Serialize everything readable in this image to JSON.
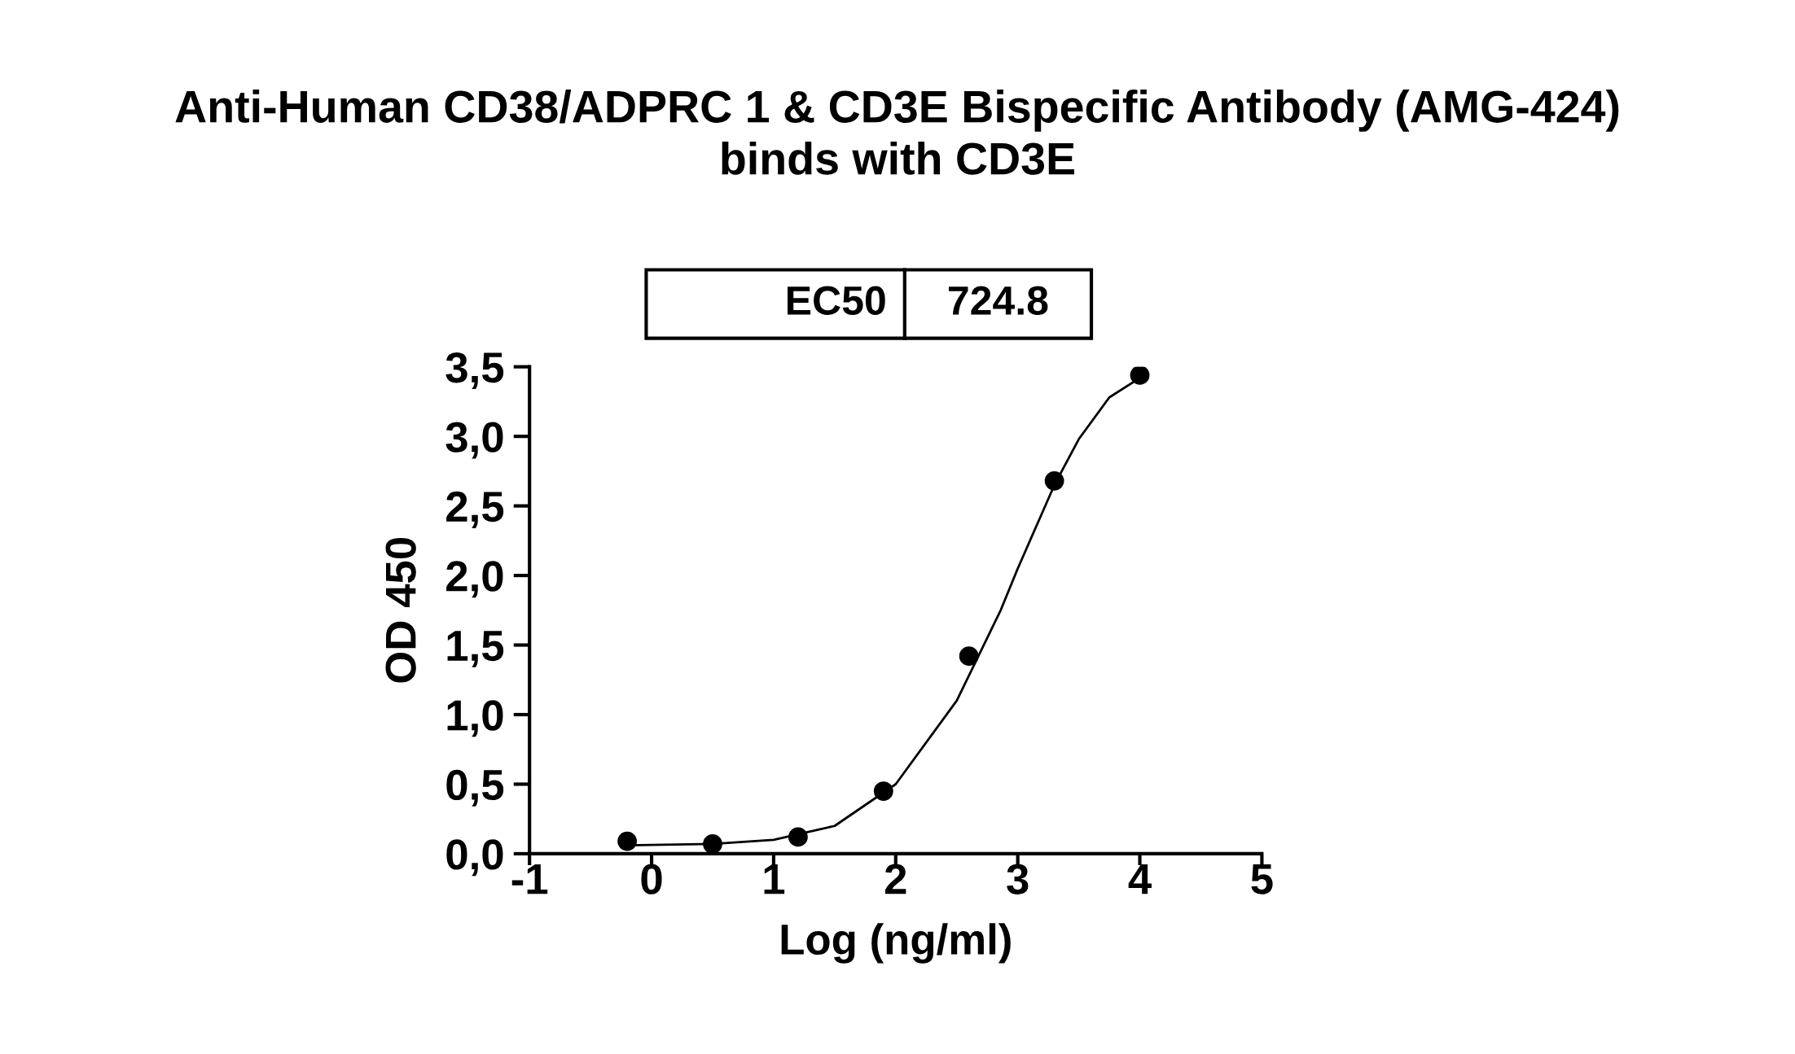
{
  "chart_data": {
    "type": "scatter",
    "title": "Anti-Human CD38/ADPRC 1 & CD3E Bispecific Antibody (AMG-424)\nbinds with CD3E",
    "xlabel": "Log (ng/ml)",
    "ylabel": "OD 450",
    "x": [
      -0.2,
      0.5,
      1.2,
      1.9,
      2.6,
      3.3,
      4.0
    ],
    "series": [
      {
        "color": "#000000",
        "marker": "circle",
        "values": [
          0.09,
          0.07,
          0.12,
          0.45,
          1.42,
          2.68,
          3.44
        ]
      },
      {
        "type": "line",
        "color": "#000000",
        "marker": "none",
        "line_style": "solid",
        "x": [
          -0.2,
          0.5,
          1.0,
          1.5,
          2.0,
          2.5,
          2.86,
          3.0,
          3.3,
          3.5,
          3.75,
          4.0
        ],
        "values": [
          0.06,
          0.07,
          0.1,
          0.2,
          0.5,
          1.1,
          1.75,
          2.05,
          2.65,
          2.98,
          3.28,
          3.42
        ]
      }
    ],
    "xlim": [
      -1,
      5
    ],
    "xticks": [
      -1,
      0,
      1,
      2,
      3,
      4,
      5
    ],
    "ylim": [
      0,
      3.5
    ],
    "yticks": [
      {
        "value": 0,
        "label": "0,0"
      },
      {
        "value": 0.5,
        "label": "0,5"
      },
      {
        "value": 1.0,
        "label": "1,0"
      },
      {
        "value": 1.5,
        "label": "1,5"
      },
      {
        "value": 2.0,
        "label": "2,0"
      },
      {
        "value": 2.5,
        "label": "2,5"
      },
      {
        "value": 3.0,
        "label": "3,0"
      },
      {
        "value": 3.5,
        "label": "3,5"
      }
    ],
    "grid": false,
    "legend": false,
    "annotations": [
      "EC50",
      "724.8"
    ]
  }
}
